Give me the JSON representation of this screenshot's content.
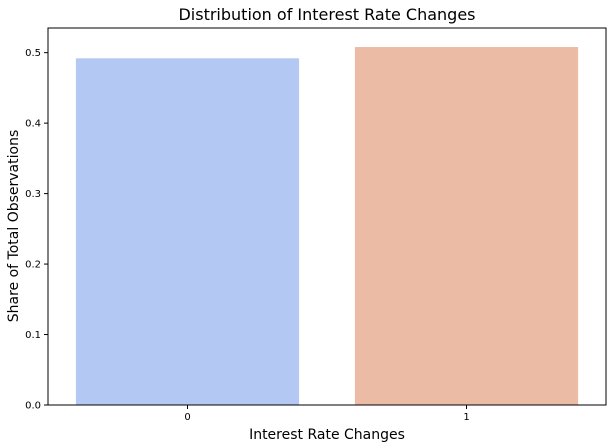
{
  "chart_data": {
    "type": "bar",
    "title": "Distribution of Interest Rate Changes",
    "xlabel": "Interest Rate Changes",
    "ylabel": "Share of Total Observations",
    "categories": [
      "0",
      "1"
    ],
    "values": [
      0.492,
      0.508
    ],
    "ylim": [
      0,
      0.535
    ],
    "yticks": [
      "0.0",
      "0.1",
      "0.2",
      "0.3",
      "0.4",
      "0.5"
    ],
    "bar_colors": [
      "#b3c9f3",
      "#ecbba6"
    ],
    "grid": false,
    "legend": "none"
  }
}
